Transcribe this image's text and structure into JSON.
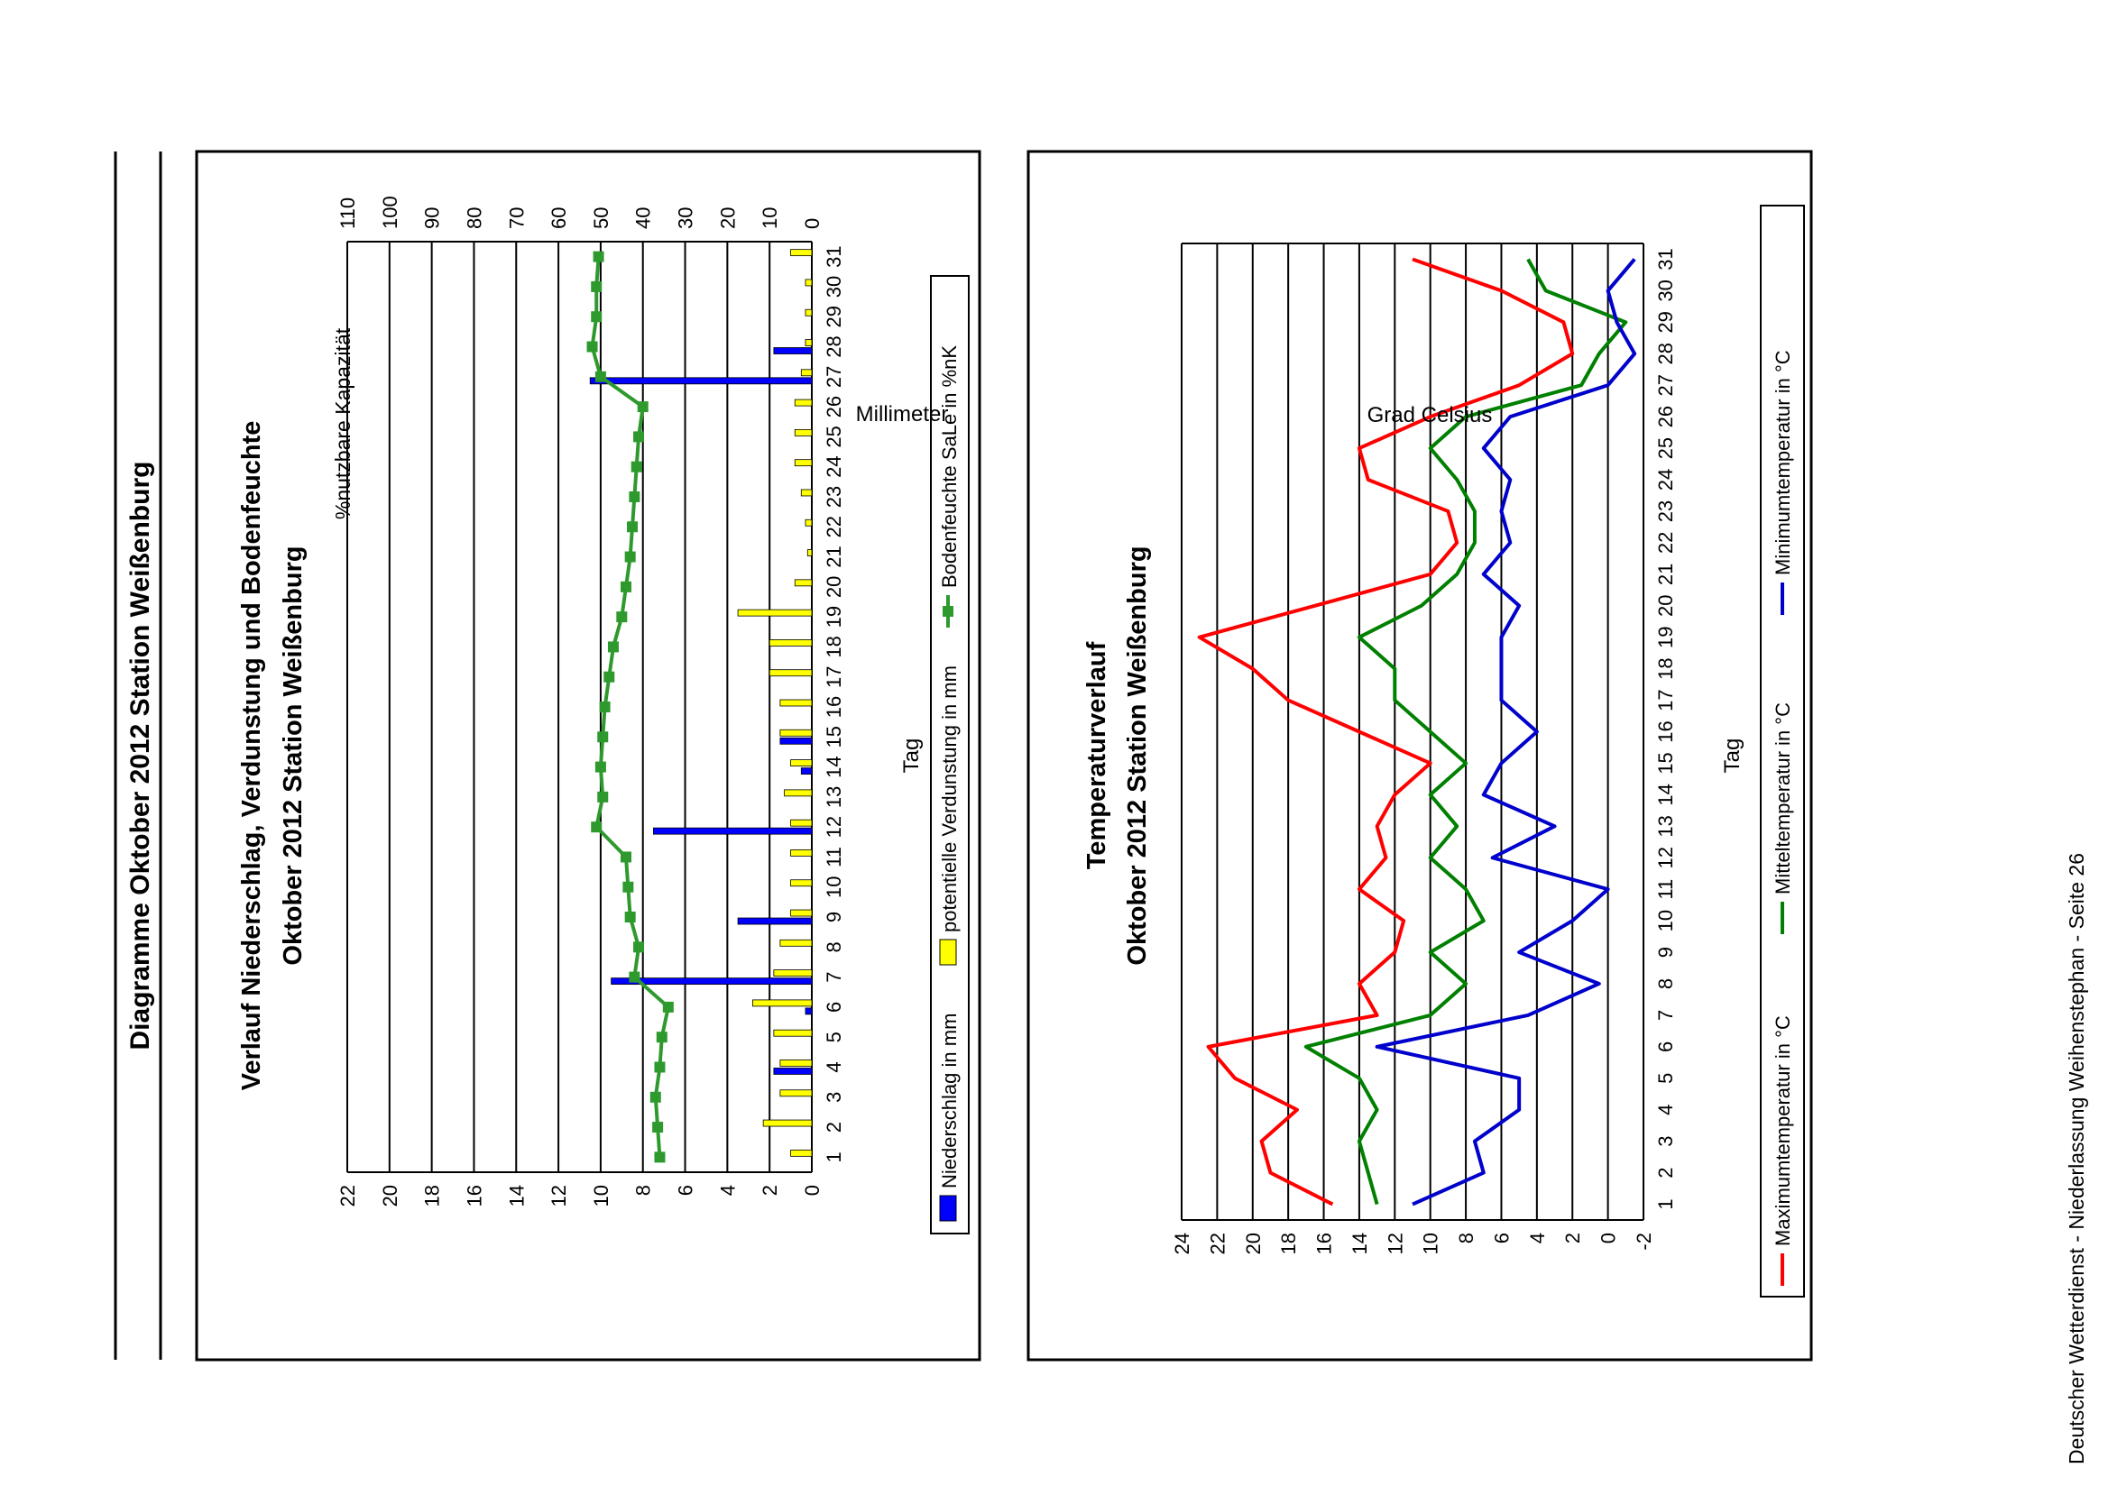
{
  "page": {
    "title": "Diagramme Oktober 2012 Station Weißenburg",
    "footer": "Deutscher Wetterdienst - Niederlassung Weihenstephan - Seite 26"
  },
  "chart_data": [
    {
      "type": "bar",
      "title": "Verlauf Niederschlag, Verdunstung und Bodenfeuchte",
      "subtitle": "Oktober 2012 Station Weißenburg",
      "xlabel": "Tag",
      "ylabel": "Millimeter",
      "y2label": "%nutzbare Kapazität",
      "categories": [
        "1",
        "2",
        "3",
        "4",
        "5",
        "6",
        "7",
        "8",
        "9",
        "10",
        "11",
        "12",
        "13",
        "14",
        "15",
        "16",
        "17",
        "18",
        "19",
        "20",
        "21",
        "22",
        "23",
        "24",
        "25",
        "26",
        "27",
        "28",
        "29",
        "30",
        "31"
      ],
      "ylim": [
        0,
        22
      ],
      "y2lim": [
        0,
        110
      ],
      "yticks": [
        0,
        2,
        4,
        6,
        8,
        10,
        12,
        14,
        16,
        18,
        20,
        22
      ],
      "y2ticks": [
        0,
        10,
        20,
        30,
        40,
        50,
        60,
        70,
        80,
        90,
        100,
        110
      ],
      "grid": true,
      "legend_position": "bottom",
      "series": [
        {
          "name": "Niederschlag in mm",
          "kind": "bar",
          "color": "#0000ff",
          "values": [
            0,
            0,
            0,
            1.8,
            0,
            0.3,
            9.5,
            0,
            3.5,
            0,
            0,
            7.5,
            0,
            0.5,
            1.5,
            0,
            0,
            0,
            0,
            0,
            0,
            0,
            0,
            0,
            0,
            0,
            10.5,
            1.8,
            0,
            0,
            0
          ]
        },
        {
          "name": "potentielle Verdunstung in mm",
          "kind": "bar",
          "color": "#ffff00",
          "values": [
            1.0,
            2.3,
            1.5,
            1.5,
            1.8,
            2.8,
            1.8,
            1.5,
            1.0,
            1.0,
            1.0,
            1.0,
            1.3,
            1.0,
            1.5,
            1.5,
            2.0,
            2.0,
            3.5,
            0.8,
            0.2,
            0.3,
            0.5,
            0.8,
            0.8,
            0.8,
            0.5,
            0.3,
            0.3,
            0.3,
            1.0
          ]
        },
        {
          "name": "Bodenfeuchte SaLe in %nK",
          "kind": "line",
          "axis": "right",
          "color": "#2e9a2e",
          "values": [
            36,
            36.5,
            37,
            36,
            35.5,
            34,
            42,
            41,
            43,
            43.5,
            44,
            51,
            49.5,
            50,
            49.5,
            49,
            48,
            47,
            45,
            44,
            43,
            42.5,
            42,
            41.5,
            41,
            40,
            50,
            52,
            51,
            51,
            50.5
          ]
        }
      ]
    },
    {
      "type": "line",
      "title": "Temperaturverlauf",
      "subtitle": "Oktober 2012 Station Weißenburg",
      "xlabel": "Tag",
      "ylabel": "Grad Celsius",
      "categories": [
        "1",
        "2",
        "3",
        "4",
        "5",
        "6",
        "7",
        "8",
        "9",
        "10",
        "11",
        "12",
        "13",
        "14",
        "15",
        "16",
        "17",
        "18",
        "19",
        "20",
        "21",
        "22",
        "23",
        "24",
        "25",
        "26",
        "27",
        "28",
        "29",
        "30",
        "31"
      ],
      "ylim": [
        -2,
        24
      ],
      "yticks": [
        -2,
        0,
        2,
        4,
        6,
        8,
        10,
        12,
        14,
        16,
        18,
        20,
        22,
        24
      ],
      "grid": true,
      "legend_position": "bottom",
      "series": [
        {
          "name": "Maximumtemperatur in °C",
          "color": "#ff0000",
          "values": [
            15.5,
            19,
            19.5,
            17.5,
            21,
            22.5,
            13,
            14,
            12,
            11.5,
            14,
            12.5,
            13,
            12,
            10,
            14,
            18,
            20,
            23,
            16.5,
            10,
            8.5,
            9,
            13.5,
            14,
            10,
            5,
            2,
            2.5,
            6,
            11
          ]
        },
        {
          "name": "Mitteltemperatur in °C",
          "color": "#008000",
          "values": [
            13,
            13.5,
            14,
            13,
            14,
            17,
            10,
            8,
            10,
            7,
            8,
            10,
            8.5,
            10,
            8,
            10,
            12,
            12,
            14,
            10.5,
            8.5,
            7.5,
            7.5,
            8.5,
            10,
            8,
            1.5,
            0.5,
            -1,
            3.5,
            4.5
          ]
        },
        {
          "name": "Minimumtemperatur in °C",
          "color": "#0000cc",
          "values": [
            11,
            7,
            7.5,
            5,
            5,
            13,
            4.5,
            0.5,
            5,
            2,
            0,
            6.5,
            3,
            7,
            6,
            4,
            6,
            6,
            6,
            5,
            7,
            5.5,
            6,
            5.5,
            7,
            5.5,
            0,
            -1.5,
            -0.5,
            0,
            -1.5
          ]
        }
      ]
    }
  ]
}
